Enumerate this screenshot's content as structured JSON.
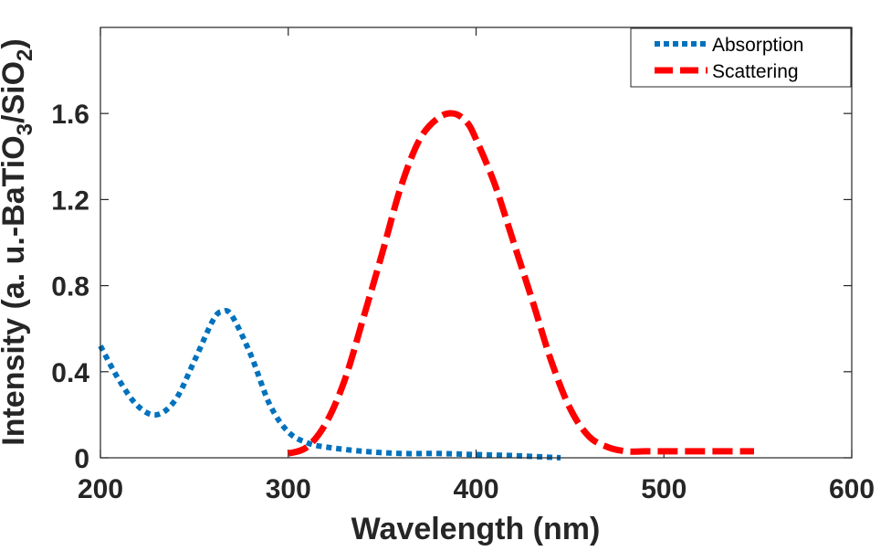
{
  "chart_data": {
    "type": "line",
    "title": "",
    "xlabel": "Wavelength (nm)",
    "ylabel_parts": [
      "Intensity (a. u.-BaTiO",
      "3",
      "/SiO",
      "2",
      ")"
    ],
    "xlim": [
      200,
      600
    ],
    "ylim": [
      0,
      2.0
    ],
    "xticks": [
      200,
      300,
      400,
      500,
      600
    ],
    "xtick_labels": [
      "200",
      "300",
      "400",
      "500",
      "600"
    ],
    "yticks": [
      0,
      0.4,
      0.8,
      1.2,
      1.6
    ],
    "ytick_labels": [
      "0",
      "0.4",
      "0.8",
      "1.2",
      "1.6"
    ],
    "grid": false,
    "legend_position": "top-right",
    "series": [
      {
        "name": "Absorption",
        "color": "#0072BD",
        "style": "dotted",
        "x": [
          200,
          210,
          220,
          230,
          240,
          250,
          260,
          265,
          270,
          280,
          290,
          300,
          310,
          320,
          340,
          360,
          380,
          400,
          420,
          445
        ],
        "y": [
          0.52,
          0.36,
          0.24,
          0.2,
          0.27,
          0.45,
          0.64,
          0.68,
          0.66,
          0.48,
          0.25,
          0.12,
          0.07,
          0.05,
          0.03,
          0.02,
          0.02,
          0.015,
          0.01,
          0.0
        ]
      },
      {
        "name": "Scattering",
        "color": "#FF0000",
        "style": "dashed",
        "x": [
          300,
          310,
          320,
          330,
          340,
          350,
          360,
          370,
          380,
          388,
          395,
          400,
          410,
          420,
          430,
          440,
          450,
          460,
          470,
          480,
          490,
          500,
          520,
          548
        ],
        "y": [
          0.02,
          0.05,
          0.16,
          0.36,
          0.65,
          0.95,
          1.26,
          1.48,
          1.58,
          1.6,
          1.56,
          1.48,
          1.27,
          1.0,
          0.73,
          0.45,
          0.23,
          0.1,
          0.05,
          0.03,
          0.03,
          0.03,
          0.03,
          0.03
        ]
      }
    ]
  }
}
